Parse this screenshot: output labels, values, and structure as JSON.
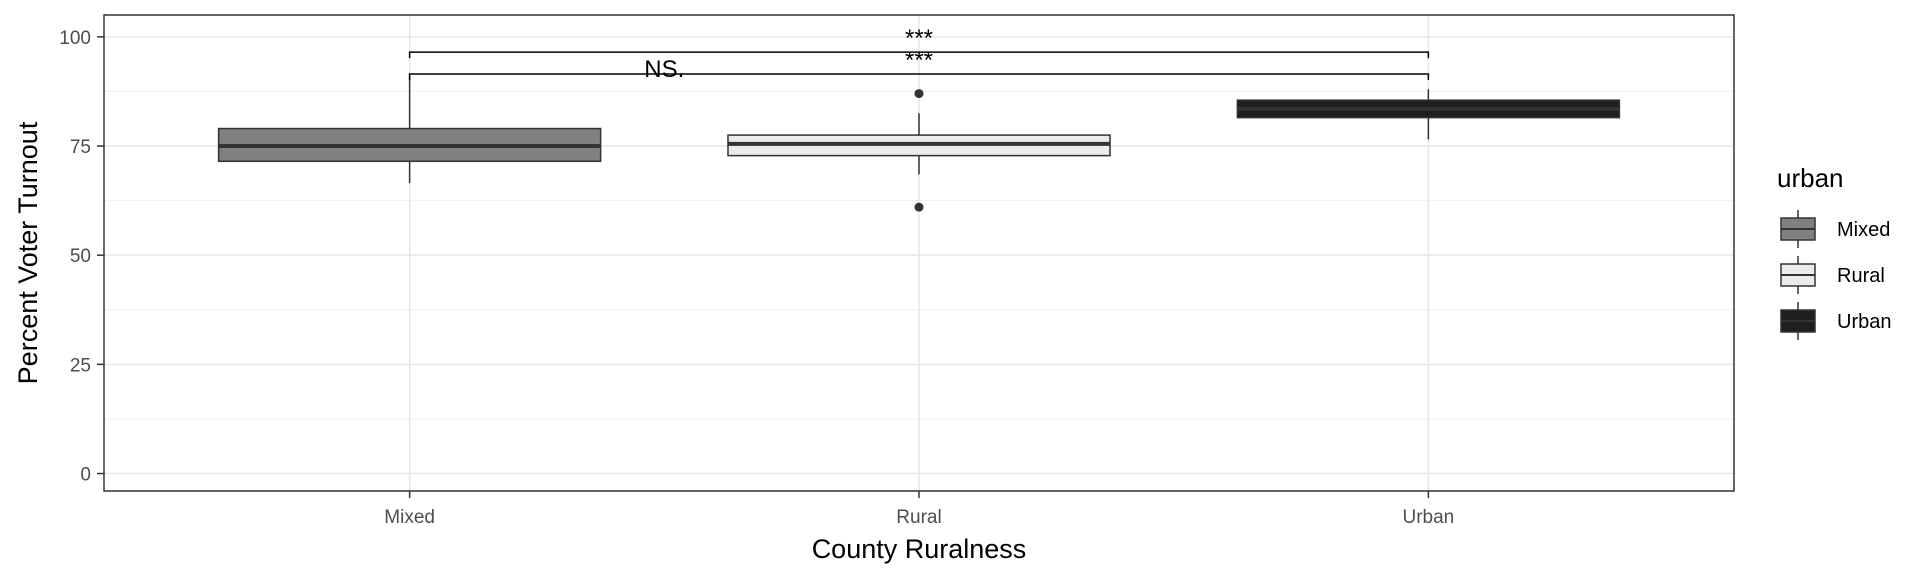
{
  "chart_data": {
    "type": "box",
    "xlabel": "County Ruralness",
    "ylabel": "Percent Voter Turnout",
    "ylim": [
      -4,
      105
    ],
    "yticks": [
      0,
      25,
      50,
      75,
      100
    ],
    "grid": true,
    "categories": [
      "Mixed",
      "Rural",
      "Urban"
    ],
    "boxes": [
      {
        "category": "Mixed",
        "whisker_low": 66.5,
        "q1": 71.5,
        "median": 75.0,
        "q3": 79.0,
        "whisker_high": 91.5,
        "outliers": [],
        "fill": "#808080"
      },
      {
        "category": "Rural",
        "whisker_low": 68.5,
        "q1": 72.8,
        "median": 75.5,
        "q3": 77.5,
        "whisker_high": 82.5,
        "outliers": [
          61.0,
          87.0
        ],
        "fill": "#ebebeb"
      },
      {
        "category": "Urban",
        "whisker_low": 76.5,
        "q1": 81.5,
        "median": 83.5,
        "q3": 85.5,
        "whisker_high": 88.0,
        "outliers": [],
        "fill": "#1f1f1f"
      }
    ],
    "legend": {
      "title": "urban",
      "placement": "right",
      "entries": [
        {
          "label": "Mixed",
          "fill": "#808080"
        },
        {
          "label": "Rural",
          "fill": "#ebebeb"
        },
        {
          "label": "Urban",
          "fill": "#1f1f1f"
        }
      ]
    },
    "significance": [
      {
        "from": "Mixed",
        "to": "Urban",
        "y": 96.5,
        "label": "***"
      },
      {
        "from": "Mixed",
        "to": "Urban",
        "y": 91.5,
        "label": "***"
      }
    ],
    "annotations": [
      {
        "text": "NS.",
        "x": 1.5,
        "y": 94.5
      }
    ]
  }
}
